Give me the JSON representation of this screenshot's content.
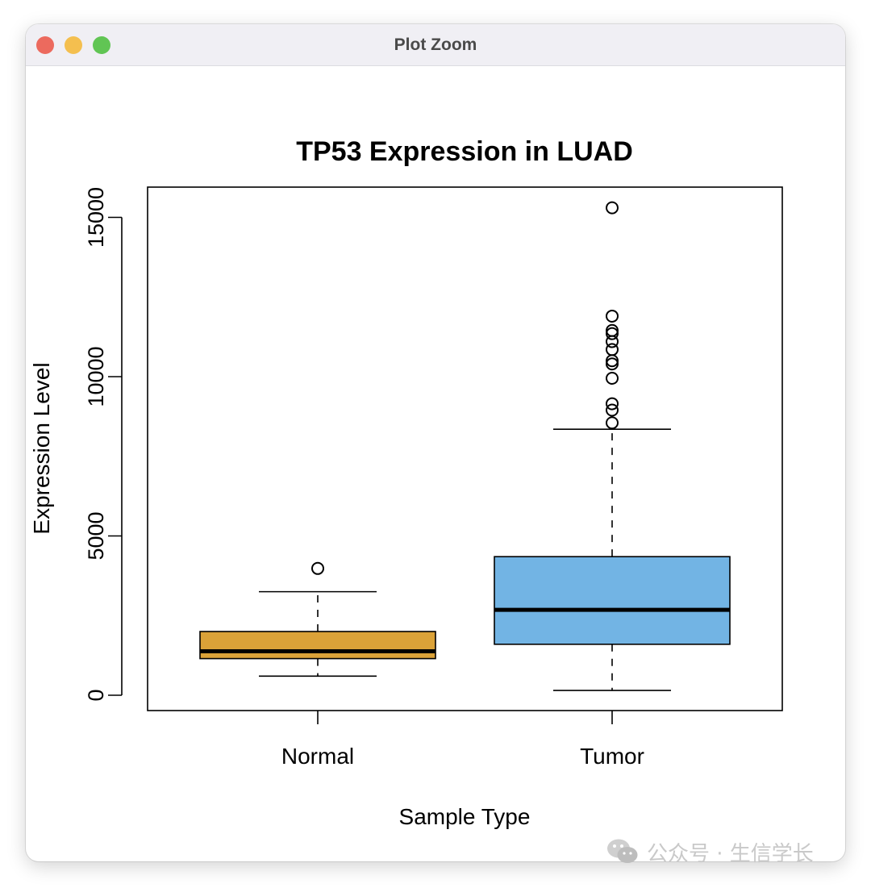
{
  "window": {
    "title": "Plot Zoom"
  },
  "chart_data": {
    "type": "box",
    "title": "TP53 Expression in LUAD",
    "xlabel": "Sample Type",
    "ylabel": "Expression Level",
    "categories": [
      "Normal",
      "Tumor"
    ],
    "ylim": [
      -450,
      16000
    ],
    "yticks": [
      0,
      5000,
      10000,
      15000
    ],
    "ytick_labels": [
      "0",
      "5000",
      "10000",
      "15000"
    ],
    "boxes": [
      {
        "name": "Normal",
        "whisker_low": 600,
        "q1": 1150,
        "median": 1380,
        "q3": 2000,
        "whisker_high": 3250,
        "outliers": [
          3980
        ],
        "color": "#dba238"
      },
      {
        "name": "Tumor",
        "whisker_low": 150,
        "q1": 1600,
        "median": 2680,
        "q3": 4350,
        "whisker_high": 8350,
        "outliers": [
          8550,
          8950,
          9150,
          9950,
          10400,
          10500,
          10850,
          11100,
          11350,
          11450,
          11900,
          15300
        ],
        "color": "#72b4e4"
      }
    ],
    "grid": false,
    "legend": "none"
  },
  "watermark": {
    "text": "公众号 · 生信学长"
  }
}
